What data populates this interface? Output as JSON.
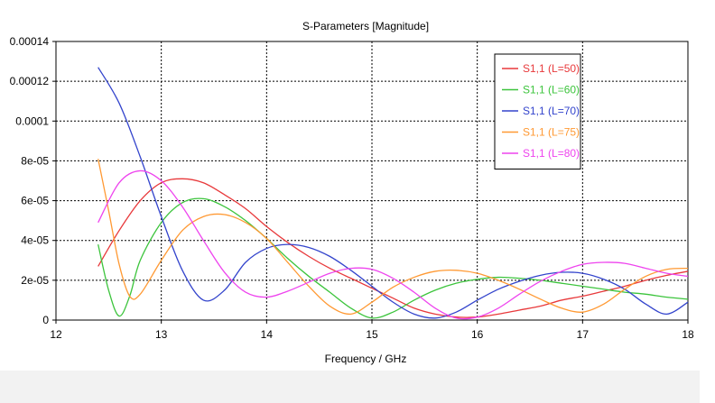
{
  "chart_data": {
    "type": "line",
    "title": "S-Parameters [Magnitude]",
    "xlabel": "Frequency / GHz",
    "ylabel": "",
    "xlim": [
      12,
      18
    ],
    "ylim": [
      0,
      0.00014
    ],
    "x_ticks": [
      "12",
      "13",
      "14",
      "15",
      "16",
      "17",
      "18"
    ],
    "y_ticks": [
      "0",
      "2e-05",
      "4e-05",
      "6e-05",
      "8e-05",
      "0.0001",
      "0.00012",
      "0.00014"
    ],
    "grid": true,
    "legend_position": "top-right",
    "series": [
      {
        "name": "S1,1 (L=50)",
        "color": "#e8393b",
        "x": [
          12.4,
          12.6,
          12.8,
          13.0,
          13.2,
          13.4,
          13.6,
          13.8,
          14.0,
          14.2,
          14.4,
          14.6,
          14.8,
          15.0,
          15.2,
          15.4,
          15.6,
          15.8,
          16.0,
          16.2,
          16.4,
          16.6,
          16.8,
          17.0,
          17.2,
          17.4,
          17.6,
          17.8,
          18.0
        ],
        "y": [
          2.7e-05,
          4.5e-05,
          6e-05,
          6.9e-05,
          7.1e-05,
          6.9e-05,
          6.3e-05,
          5.6e-05,
          4.7e-05,
          3.9e-05,
          3.2e-05,
          2.6e-05,
          2.1e-05,
          1.6e-05,
          1.1e-05,
          6e-06,
          3e-06,
          1.5e-06,
          1.5e-06,
          3e-06,
          5e-06,
          7e-06,
          1e-05,
          1.2e-05,
          1.45e-05,
          1.7e-05,
          2e-05,
          2.25e-05,
          2.45e-05
        ]
      },
      {
        "name": "S1,1 (L=60)",
        "color": "#3cc43c",
        "x": [
          12.4,
          12.5,
          12.6,
          12.7,
          12.8,
          13.0,
          13.2,
          13.4,
          13.6,
          13.8,
          14.0,
          14.2,
          14.4,
          14.6,
          14.8,
          15.0,
          15.2,
          15.4,
          15.6,
          15.8,
          16.0,
          16.2,
          16.4,
          16.6,
          16.8,
          17.0,
          17.2,
          17.4,
          17.6,
          17.8,
          18.0
        ],
        "y": [
          3.8e-05,
          1.5e-05,
          2e-06,
          1.2e-05,
          3e-05,
          4.9e-05,
          5.9e-05,
          6.1e-05,
          5.7e-05,
          5e-05,
          4.1e-05,
          3.1e-05,
          2.2e-05,
          1.4e-05,
          6e-06,
          1e-06,
          4e-06,
          1e-05,
          1.5e-05,
          1.85e-05,
          2.05e-05,
          2.15e-05,
          2.1e-05,
          2e-05,
          1.85e-05,
          1.7e-05,
          1.55e-05,
          1.4e-05,
          1.3e-05,
          1.15e-05,
          1.05e-05
        ]
      },
      {
        "name": "S1,1 (L=70)",
        "color": "#3344cc",
        "x": [
          12.4,
          12.6,
          12.8,
          13.0,
          13.2,
          13.4,
          13.6,
          13.8,
          14.0,
          14.2,
          14.4,
          14.6,
          14.8,
          15.0,
          15.2,
          15.4,
          15.6,
          15.8,
          16.0,
          16.2,
          16.4,
          16.6,
          16.8,
          17.0,
          17.2,
          17.4,
          17.6,
          17.8,
          18.0
        ],
        "y": [
          0.000127,
          0.000109,
          8.2e-05,
          5.2e-05,
          2.5e-05,
          1e-05,
          1.5e-05,
          2.9e-05,
          3.6e-05,
          3.8e-05,
          3.65e-05,
          3.2e-05,
          2.5e-05,
          1.7e-05,
          9e-06,
          3e-06,
          1e-06,
          4e-06,
          1e-05,
          1.55e-05,
          1.95e-05,
          2.25e-05,
          2.4e-05,
          2.35e-05,
          2.05e-05,
          1.55e-05,
          8e-06,
          3e-06,
          9e-06
        ]
      },
      {
        "name": "S1,1 (L=75)",
        "color": "#ff9933",
        "x": [
          12.4,
          12.5,
          12.6,
          12.7,
          12.8,
          13.0,
          13.2,
          13.4,
          13.6,
          13.8,
          14.0,
          14.2,
          14.4,
          14.6,
          14.8,
          15.0,
          15.2,
          15.4,
          15.6,
          15.8,
          16.0,
          16.2,
          16.4,
          16.6,
          16.8,
          17.0,
          17.2,
          17.4,
          17.6,
          17.8,
          18.0
        ],
        "y": [
          8.1e-05,
          5.5e-05,
          2.8e-05,
          1.2e-05,
          1.3e-05,
          3e-05,
          4.5e-05,
          5.2e-05,
          5.3e-05,
          4.9e-05,
          4.1e-05,
          2.9e-05,
          1.7e-05,
          7e-06,
          3e-06,
          9e-06,
          1.65e-05,
          2.15e-05,
          2.45e-05,
          2.5e-05,
          2.35e-05,
          2e-05,
          1.55e-05,
          1.05e-05,
          6e-06,
          4e-06,
          8e-06,
          1.55e-05,
          2.2e-05,
          2.55e-05,
          2.6e-05
        ]
      },
      {
        "name": "S1,1 (L=80)",
        "color": "#ee44ee",
        "x": [
          12.4,
          12.6,
          12.8,
          13.0,
          13.2,
          13.4,
          13.6,
          13.8,
          14.0,
          14.2,
          14.4,
          14.6,
          14.8,
          15.0,
          15.2,
          15.4,
          15.6,
          15.8,
          16.0,
          16.2,
          16.4,
          16.6,
          16.8,
          17.0,
          17.2,
          17.4,
          17.6,
          17.8,
          18.0
        ],
        "y": [
          4.9e-05,
          6.9e-05,
          7.5e-05,
          7e-05,
          5.7e-05,
          4e-05,
          2.4e-05,
          1.4e-05,
          1.15e-05,
          1.45e-05,
          1.9e-05,
          2.35e-05,
          2.6e-05,
          2.55e-05,
          2.1e-05,
          1.4e-05,
          6e-06,
          1e-06,
          1.5e-06,
          6e-06,
          1.3e-05,
          1.95e-05,
          2.45e-05,
          2.8e-05,
          2.9e-05,
          2.85e-05,
          2.6e-05,
          2.35e-05,
          2.2e-05
        ]
      }
    ]
  }
}
